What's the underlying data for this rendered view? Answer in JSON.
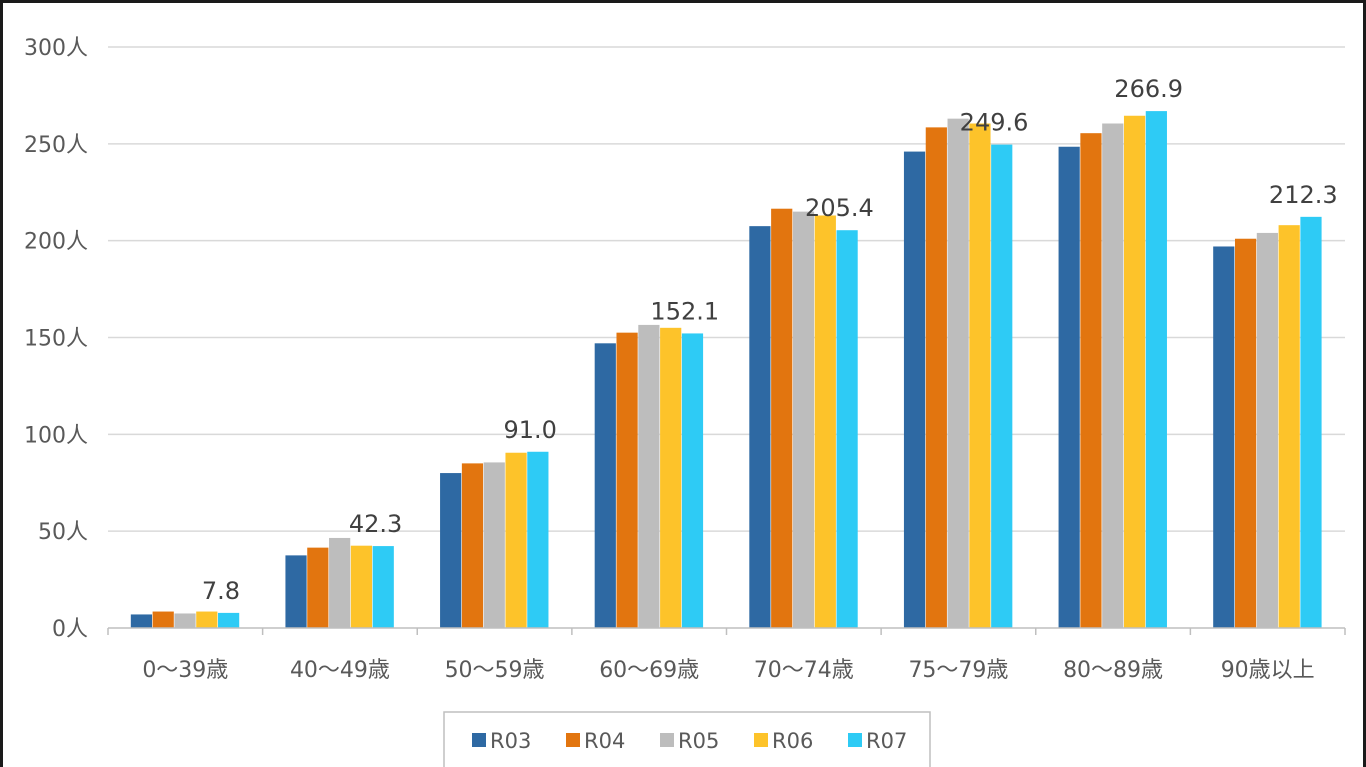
{
  "chart_data": {
    "type": "bar",
    "categories": [
      "0～39歳",
      "40～49歳",
      "50～59歳",
      "60～69歳",
      "70～74歳",
      "75～79歳",
      "80～89歳",
      "90歳以上"
    ],
    "series": [
      {
        "name": "R03",
        "color": "#2E69A3",
        "values": [
          7.0,
          37.5,
          80.0,
          147.0,
          207.5,
          246.0,
          248.5,
          197.0
        ]
      },
      {
        "name": "R04",
        "color": "#E2750F",
        "values": [
          8.5,
          41.5,
          85.0,
          152.5,
          216.5,
          258.5,
          255.5,
          201.0
        ]
      },
      {
        "name": "R05",
        "color": "#BDBDBD",
        "values": [
          7.5,
          46.5,
          85.5,
          156.5,
          215.0,
          263.0,
          260.5,
          204.0
        ]
      },
      {
        "name": "R06",
        "color": "#FDC32A",
        "values": [
          8.5,
          42.5,
          90.5,
          155.0,
          213.0,
          260.5,
          264.5,
          208.0
        ]
      },
      {
        "name": "R07",
        "color": "#2ECBF5",
        "values": [
          7.8,
          42.3,
          91.0,
          152.1,
          205.4,
          249.6,
          266.9,
          212.3
        ]
      }
    ],
    "data_labels": [
      "7.8",
      "42.3",
      "91.0",
      "152.1",
      "205.4",
      "249.6",
      "266.9",
      "212.3"
    ],
    "yticks": [
      "0人",
      "50人",
      "100人",
      "150人",
      "200人",
      "250人",
      "300人"
    ],
    "ylim": [
      0,
      300
    ],
    "grid": true,
    "legend_position": "bottom",
    "title": "",
    "xlabel": "",
    "ylabel": ""
  }
}
